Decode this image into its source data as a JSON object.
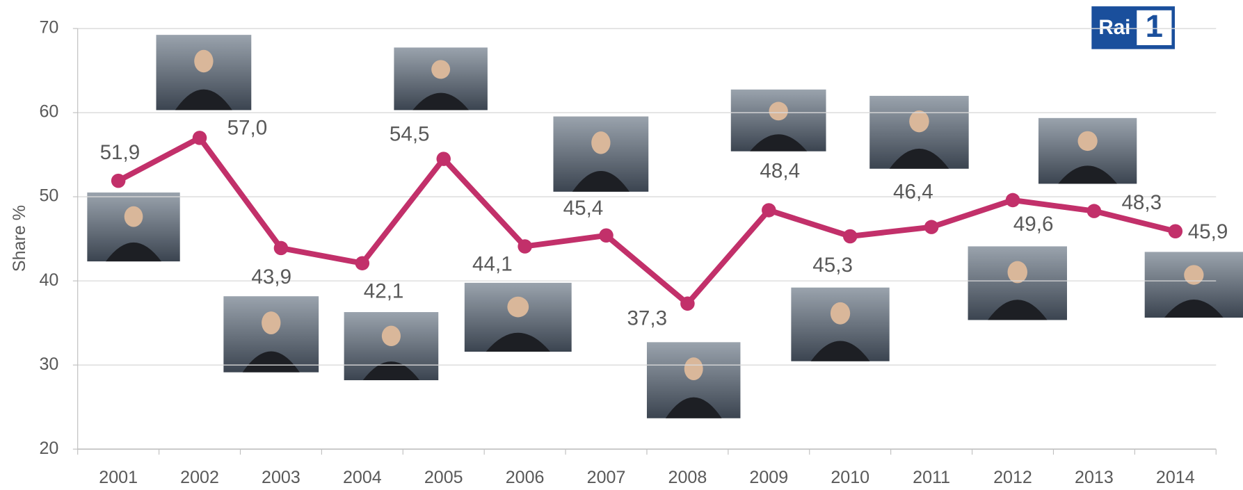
{
  "chart_data": {
    "type": "line",
    "y_label": "Share %",
    "logo": {
      "text": "Rai",
      "number": "1"
    },
    "categories": [
      "2001",
      "2002",
      "2003",
      "2004",
      "2005",
      "2006",
      "2007",
      "2008",
      "2009",
      "2010",
      "2011",
      "2012",
      "2013",
      "2014"
    ],
    "values": [
      51.9,
      57.0,
      43.9,
      42.1,
      54.5,
      44.1,
      45.4,
      37.3,
      48.4,
      45.3,
      46.4,
      49.6,
      48.3,
      45.9
    ],
    "value_labels": [
      "51,9",
      "57,0",
      "43,9",
      "42,1",
      "54,5",
      "44,1",
      "45,4",
      "37,3",
      "48,4",
      "45,3",
      "46,4",
      "49,6",
      "48,3",
      "45,9"
    ],
    "color": "#c2306a",
    "ylim": [
      20,
      70
    ],
    "yticks": [
      20,
      30,
      40,
      50,
      60,
      70
    ],
    "grid": true
  }
}
